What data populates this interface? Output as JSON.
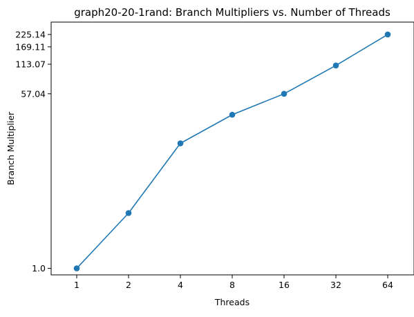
{
  "chart_data": {
    "type": "line",
    "title": "graph20-20-1rand: Branch Multipliers vs. Number of Threads",
    "xlabel": "Threads",
    "ylabel": "Branch Multiplier",
    "categories": [
      "1",
      "2",
      "4",
      "8",
      "16",
      "32",
      "64"
    ],
    "yscale": "log",
    "ylim": [
      0.86,
      300
    ],
    "yticks": [
      {
        "value": 1.0,
        "label": "1.0"
      },
      {
        "value": 57.04,
        "label": "57.04"
      },
      {
        "value": 113.07,
        "label": "113.07"
      },
      {
        "value": 169.11,
        "label": "169.11"
      },
      {
        "value": 225.14,
        "label": "225.14"
      }
    ],
    "series": [
      {
        "values": [
          1.0,
          3.6,
          18.1,
          35.1,
          57.0,
          109.9,
          225.14
        ],
        "color": "#1f77b4",
        "marker": "circle"
      }
    ],
    "grid": false,
    "legend": "none"
  }
}
